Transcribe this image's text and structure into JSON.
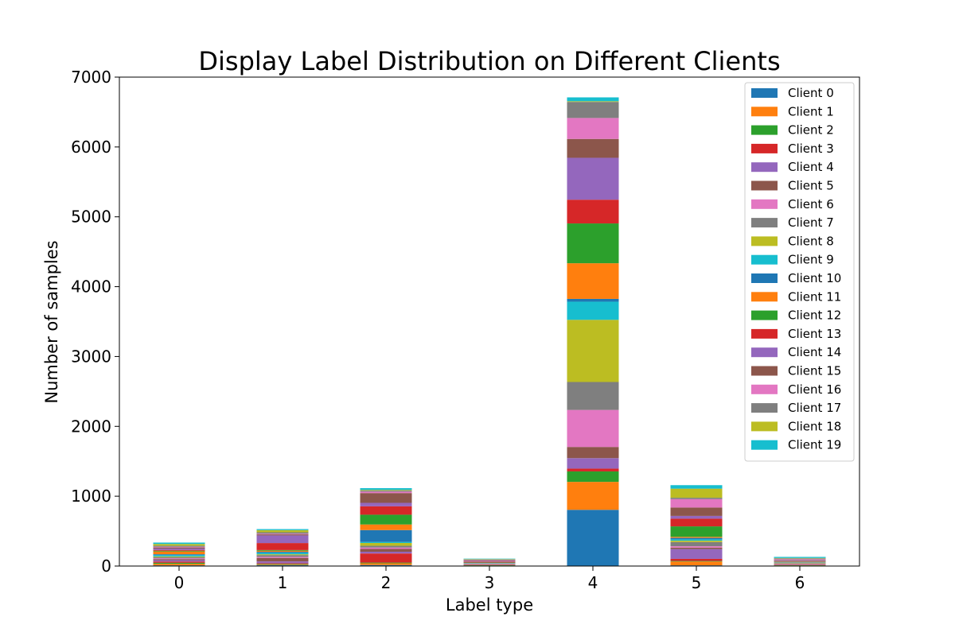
{
  "chart_data": {
    "type": "bar",
    "stacked": true,
    "title": "Display Label Distribution on Different Clients",
    "xlabel": "Label type",
    "ylabel": "Number of samples",
    "categories": [
      "0",
      "1",
      "2",
      "3",
      "4",
      "5",
      "6"
    ],
    "ylim": [
      0,
      7000
    ],
    "yticks": [
      0,
      1000,
      2000,
      3000,
      4000,
      5000,
      6000,
      7000
    ],
    "legend_position": "top-right",
    "grid": false,
    "series": [
      {
        "name": "Client 0",
        "color": "#1f77b4",
        "values": [
          10,
          12,
          15,
          4,
          805,
          10,
          4
        ]
      },
      {
        "name": "Client 1",
        "color": "#ff7f0e",
        "values": [
          22,
          8,
          25,
          3,
          400,
          55,
          4
        ]
      },
      {
        "name": "Client 2",
        "color": "#2ca02c",
        "values": [
          15,
          10,
          10,
          4,
          150,
          8,
          5
        ]
      },
      {
        "name": "Client 3",
        "color": "#d62728",
        "values": [
          18,
          12,
          130,
          5,
          40,
          30,
          6
        ]
      },
      {
        "name": "Client 4",
        "color": "#9467bd",
        "values": [
          20,
          25,
          25,
          4,
          150,
          140,
          5
        ]
      },
      {
        "name": "Client 5",
        "color": "#8c564b",
        "values": [
          15,
          50,
          40,
          5,
          160,
          20,
          6
        ]
      },
      {
        "name": "Client 6",
        "color": "#e377c2",
        "values": [
          12,
          15,
          20,
          4,
          530,
          20,
          5
        ]
      },
      {
        "name": "Client 7",
        "color": "#7f7f7f",
        "values": [
          15,
          25,
          25,
          4,
          400,
          60,
          6
        ]
      },
      {
        "name": "Client 8",
        "color": "#bcbd22",
        "values": [
          10,
          12,
          40,
          3,
          890,
          20,
          4
        ]
      },
      {
        "name": "Client 9",
        "color": "#17becf",
        "values": [
          20,
          20,
          15,
          4,
          260,
          20,
          5
        ]
      },
      {
        "name": "Client 10",
        "color": "#1f77b4",
        "values": [
          12,
          15,
          170,
          4,
          40,
          20,
          4
        ]
      },
      {
        "name": "Client 11",
        "color": "#ff7f0e",
        "values": [
          40,
          15,
          80,
          3,
          510,
          15,
          5
        ]
      },
      {
        "name": "Client 12",
        "color": "#2ca02c",
        "values": [
          10,
          10,
          140,
          4,
          570,
          150,
          5
        ]
      },
      {
        "name": "Client 13",
        "color": "#d62728",
        "values": [
          12,
          100,
          120,
          10,
          340,
          110,
          6
        ]
      },
      {
        "name": "Client 14",
        "color": "#9467bd",
        "values": [
          20,
          110,
          50,
          5,
          600,
          40,
          8
        ]
      },
      {
        "name": "Client 15",
        "color": "#8c564b",
        "values": [
          15,
          15,
          140,
          8,
          270,
          120,
          10
        ]
      },
      {
        "name": "Client 16",
        "color": "#e377c2",
        "values": [
          10,
          10,
          20,
          10,
          300,
          120,
          12
        ]
      },
      {
        "name": "Client 17",
        "color": "#7f7f7f",
        "values": [
          15,
          20,
          15,
          10,
          230,
          20,
          10
        ]
      },
      {
        "name": "Client 18",
        "color": "#bcbd22",
        "values": [
          25,
          30,
          10,
          6,
          10,
          130,
          6
        ]
      },
      {
        "name": "Client 19",
        "color": "#17becf",
        "values": [
          20,
          15,
          25,
          6,
          55,
          50,
          15
        ]
      }
    ]
  }
}
